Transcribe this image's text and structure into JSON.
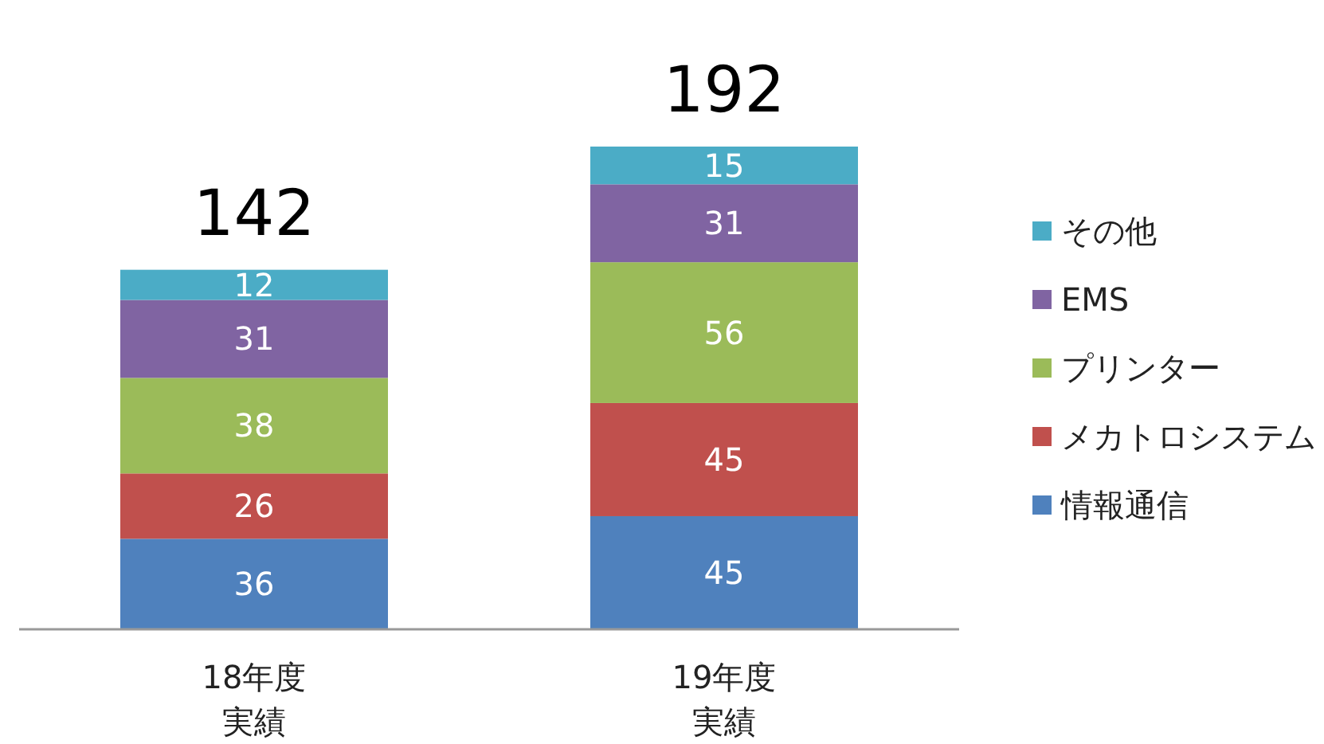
{
  "chart_data": {
    "type": "bar",
    "stacked": true,
    "data_labels": true,
    "legend": "right",
    "grid": false,
    "categories": [
      "18年度実績",
      "19年度実績"
    ],
    "series": [
      {
        "name": "情報通信",
        "color": "#4f81bd",
        "values": [
          36,
          45
        ]
      },
      {
        "name": "メカトロシステム",
        "color": "#c0504d",
        "values": [
          26,
          45
        ]
      },
      {
        "name": "プリンター",
        "color": "#9bbb59",
        "values": [
          38,
          56
        ]
      },
      {
        "name": "EMS",
        "color": "#8064a2",
        "values": [
          31,
          31
        ]
      },
      {
        "name": "その他",
        "color": "#4bacc6",
        "values": [
          12,
          15
        ]
      }
    ],
    "totals": [
      "142",
      "192"
    ]
  }
}
